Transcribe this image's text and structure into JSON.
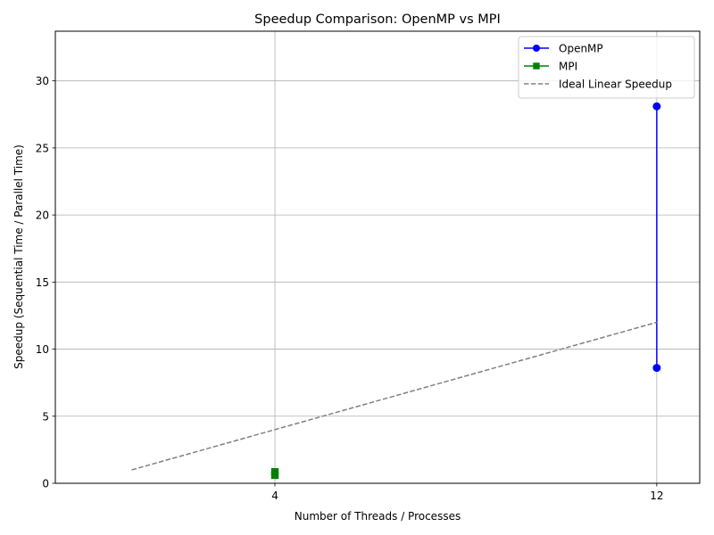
{
  "chart_data": {
    "type": "line",
    "title": "Speedup Comparison: OpenMP vs MPI",
    "xlabel": "Number of Threads / Processes",
    "ylabel": "Speedup (Sequential Time / Parallel Time)",
    "xlim": [
      -0.6,
      12.9
    ],
    "ylim": [
      0,
      33.7
    ],
    "x_ticks": [
      4,
      12
    ],
    "y_ticks": [
      0,
      5,
      10,
      15,
      20,
      25,
      30
    ],
    "grid": true,
    "legend_position": "top-right",
    "series": [
      {
        "name": "OpenMP",
        "color": "#0000ff",
        "marker": "circle",
        "linestyle": "solid",
        "points": [
          [
            12,
            28.1
          ],
          [
            12,
            8.6
          ]
        ]
      },
      {
        "name": "MPI",
        "color": "#008000",
        "marker": "square",
        "linestyle": "solid",
        "points": [
          [
            4,
            0.85
          ],
          [
            4,
            0.6
          ]
        ]
      },
      {
        "name": "Ideal Linear Speedup",
        "color": "#808080",
        "marker": "none",
        "linestyle": "dashed",
        "points": [
          [
            1,
            1
          ],
          [
            12,
            12
          ]
        ]
      }
    ]
  }
}
